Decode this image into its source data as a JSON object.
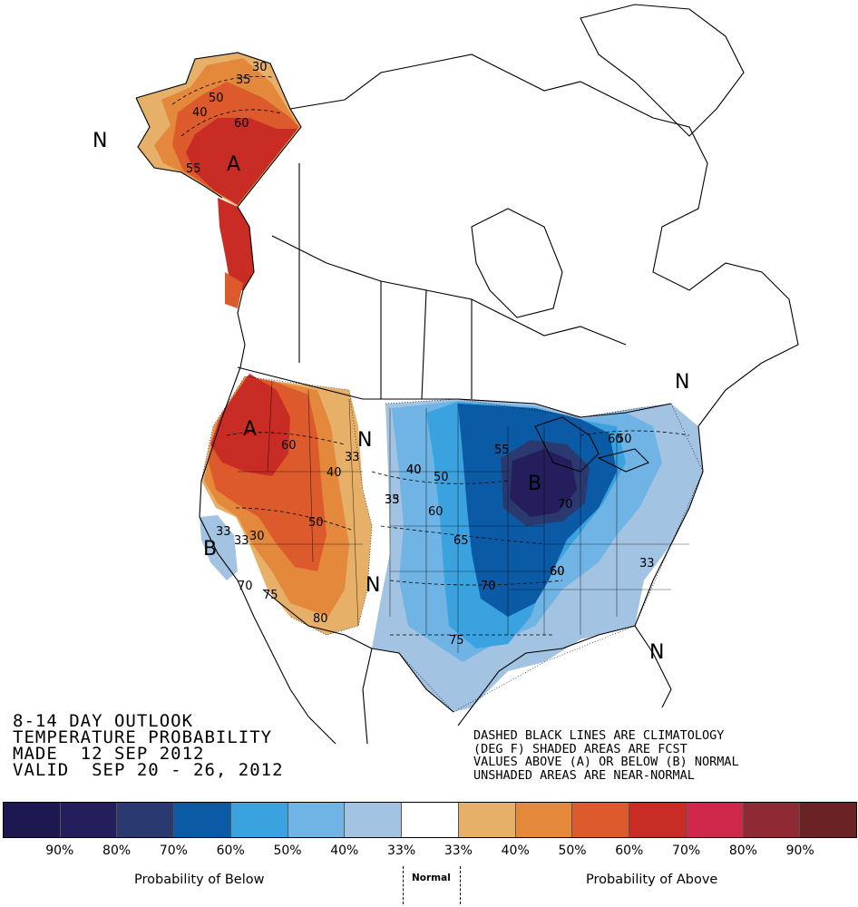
{
  "title": {
    "line1": "8-14 DAY OUTLOOK",
    "line2": "TEMPERATURE PROBABILITY",
    "line3": "MADE  12 SEP 2012",
    "line4": "VALID  SEP 20 - 26, 2012"
  },
  "note": {
    "line1": "DASHED BLACK LINES ARE CLIMATOLOGY",
    "line2": "(DEG F) SHADED AREAS ARE FCST",
    "line3": "VALUES ABOVE (A) OR BELOW (B) NORMAL",
    "line4": "UNSHADED AREAS ARE NEAR-NORMAL"
  },
  "map_labels": {
    "alaska_n": "N",
    "alaska_a": "A",
    "west_a": "A",
    "california_b": "B",
    "plains_n": "N",
    "texas_n": "N",
    "midwest_b": "B",
    "northeast_n": "N",
    "florida_n": "N"
  },
  "contours": [
    "30",
    "35",
    "40",
    "50",
    "60",
    "55",
    "60",
    "40",
    "33",
    "60",
    "40",
    "33",
    "50",
    "35",
    "40",
    "50",
    "60",
    "65",
    "70",
    "75",
    "33",
    "30",
    "33",
    "70",
    "75",
    "80",
    "55",
    "50",
    "70",
    "60",
    "33",
    "60"
  ],
  "legend": {
    "colors": [
      "#1e1850",
      "#241e5c",
      "#2a3a70",
      "#0b5aa6",
      "#3aa2df",
      "#6fb4e4",
      "#a3c3e3",
      "#ffffff",
      "#e7b068",
      "#e4883c",
      "#dd5a2c",
      "#c92c24",
      "#d0284a",
      "#8e2a34",
      "#6a2224"
    ],
    "ticks": [
      "90%",
      "80%",
      "70%",
      "60%",
      "50%",
      "40%",
      "33%",
      "33%",
      "40%",
      "50%",
      "60%",
      "70%",
      "80%",
      "90%"
    ],
    "below_caption": "Probability of Below",
    "normal_caption": "Normal",
    "above_caption": "Probability of Above"
  },
  "palette": {
    "above_weak": "#e7b068",
    "above_mid": "#e4883c",
    "above_strong": "#dd5a2c",
    "above_stronger": "#c92c24",
    "below_weak": "#a3c3e3",
    "below_mid": "#6fb4e4",
    "below_med": "#3aa2df",
    "below_strong": "#0b5aa6",
    "below_stronger": "#2a3a70",
    "below_max": "#241e5c"
  }
}
